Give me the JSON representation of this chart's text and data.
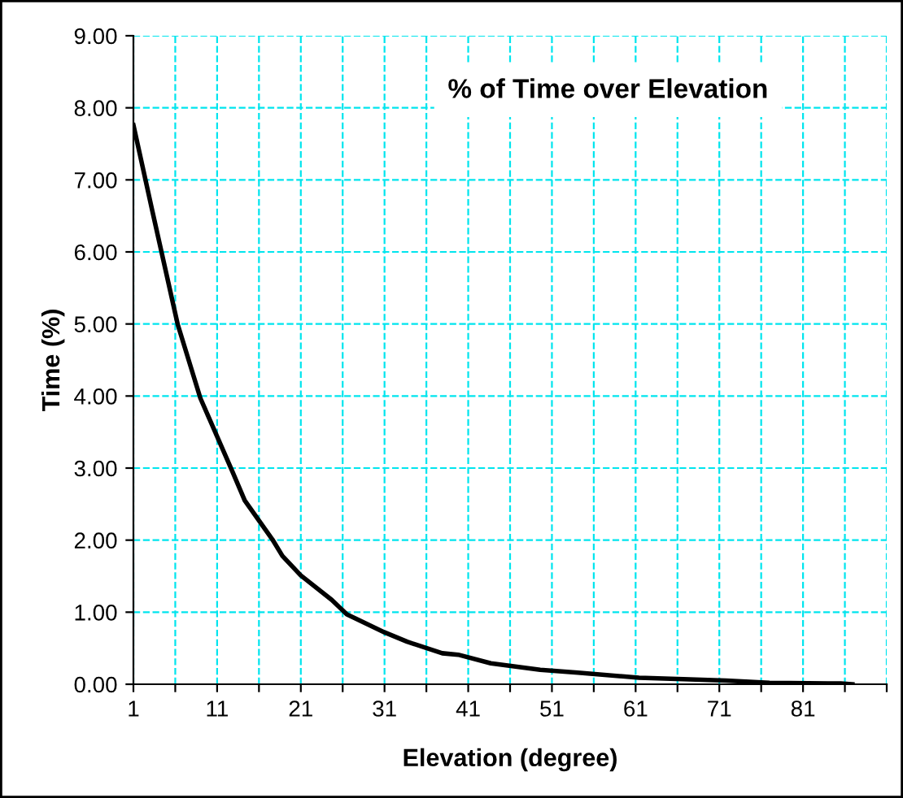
{
  "chart_data": {
    "type": "line",
    "title": "% of Time over Elevation",
    "xlabel": "Elevation (degree)",
    "ylabel": "Time (%)",
    "series": [
      {
        "color": "#000000",
        "x": [
          1,
          3.2,
          6.3,
          9,
          12.8,
          14.3,
          17.6,
          18.8,
          21,
          24.7,
          26.5,
          31,
          33.7,
          37.9,
          39.8,
          43.7,
          49.6,
          54.1,
          61.4,
          66.7,
          71.8,
          77,
          85.5,
          86.9
        ],
        "values": [
          7.76,
          6.6,
          4.99,
          3.97,
          2.96,
          2.55,
          2.01,
          1.78,
          1.51,
          1.17,
          0.97,
          0.72,
          0.59,
          0.43,
          0.41,
          0.29,
          0.2,
          0.16,
          0.09,
          0.07,
          0.05,
          0.02,
          0.01,
          0
        ]
      }
    ],
    "xlim": [
      1,
      91
    ],
    "xticks": [
      1,
      {
        "value": 6,
        "label": null
      },
      11,
      {
        "value": 16,
        "label": null
      },
      21,
      {
        "value": 26,
        "label": null
      },
      31,
      {
        "value": 36,
        "label": null
      },
      41,
      {
        "value": 46,
        "label": null
      },
      51,
      {
        "value": 56,
        "label": null
      },
      61,
      {
        "value": 66,
        "label": null
      },
      71,
      {
        "value": 76,
        "label": null
      },
      81,
      {
        "value": 86,
        "label": null
      },
      {
        "value": 91,
        "label": null
      }
    ],
    "ylim": [
      0,
      9
    ],
    "yticks": [
      {
        "value": 0,
        "label": "0.00"
      },
      {
        "value": 1,
        "label": "1.00"
      },
      {
        "value": 2,
        "label": "2.00"
      },
      {
        "value": 3,
        "label": "3.00"
      },
      {
        "value": 4,
        "label": "4.00"
      },
      {
        "value": 5,
        "label": "5.00"
      },
      {
        "value": 6,
        "label": "6.00"
      },
      {
        "value": 7,
        "label": "7.00"
      },
      {
        "value": 8,
        "label": "8.00"
      },
      {
        "value": 9,
        "label": "9.00"
      }
    ],
    "grid": true,
    "marker": "none",
    "line_style": "solid",
    "legend": false
  }
}
